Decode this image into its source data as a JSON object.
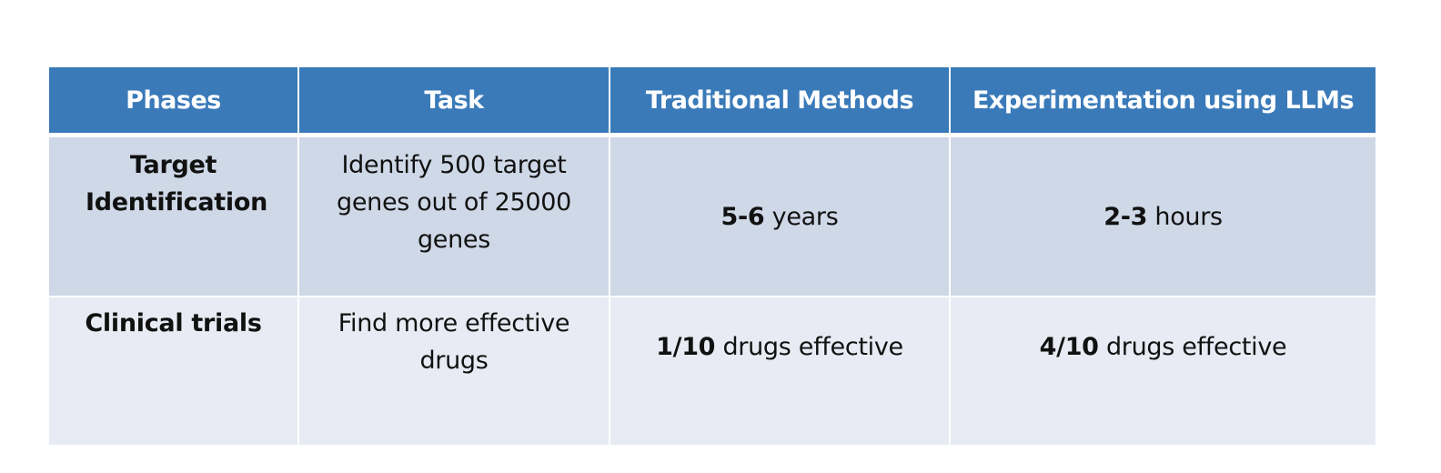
{
  "table": {
    "headers": [
      "Phases",
      "Task",
      "Traditional Methods",
      "Experimentation using LLMs"
    ],
    "rows": [
      {
        "phase": "Target Identification",
        "task": "Identify 500 target genes out of 25000 genes",
        "traditional": {
          "value": "5-6",
          "unit": " years"
        },
        "llm": {
          "value": "2-3",
          "unit": " hours"
        }
      },
      {
        "phase": "Clinical trials",
        "task": "Find more effective drugs",
        "traditional": {
          "value": "1/10",
          "unit": " drugs effective"
        },
        "llm": {
          "value": "4/10",
          "unit": " drugs effective"
        }
      }
    ]
  },
  "colors": {
    "header_bg": "#3a7ab9",
    "row1_bg": "#cfd8e7",
    "row2_bg": "#e8ebf3"
  }
}
